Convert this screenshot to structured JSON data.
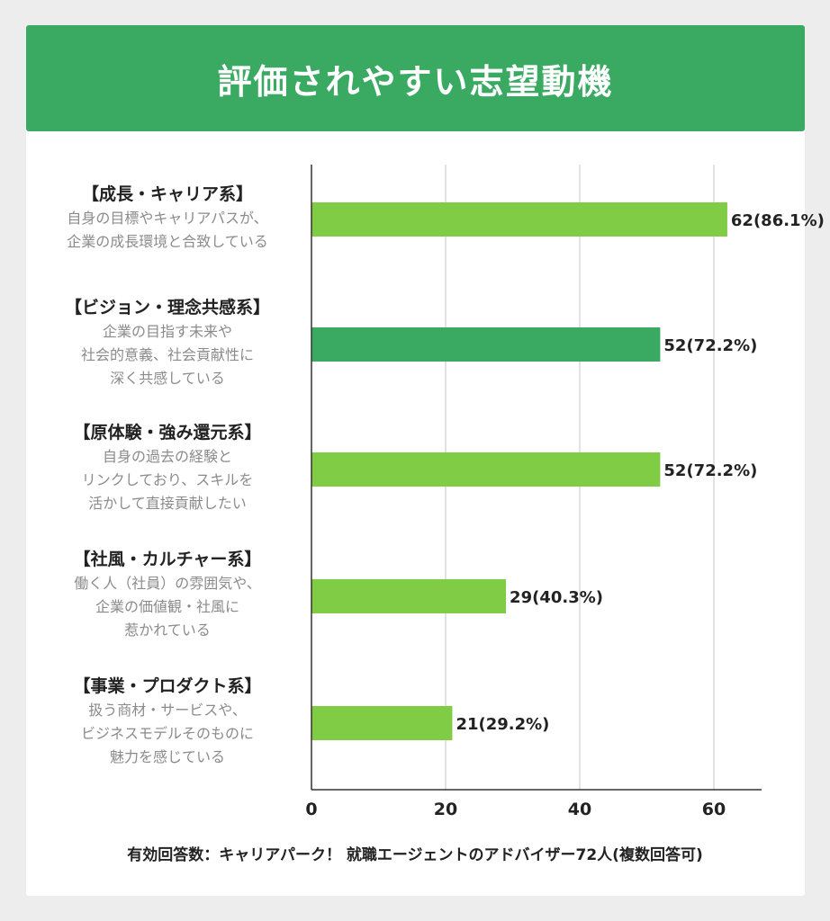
{
  "title": "評価されやすい志望動機",
  "footnote": "有効回答数：キャリアパーク！ 就職エージェントのアドバイザー72人(複数回答可)",
  "colors": {
    "header": "#3aaa63",
    "bar_light": "#80cc44",
    "bar_dark": "#3aaa63"
  },
  "chart_data": {
    "type": "bar",
    "orientation": "horizontal",
    "categories": [
      {
        "title": "【成長・キャリア系】",
        "desc": [
          "自身の目標やキャリアパスが、",
          "企業の成長環境と合致している"
        ],
        "value": 62,
        "label": "62(86.1%)",
        "color": "#80cc44"
      },
      {
        "title": "【ビジョン・理念共感系】",
        "desc": [
          "企業の目指す未来や",
          "社会的意義、社会貢献性に",
          "深く共感している"
        ],
        "value": 52,
        "label": "52(72.2%)",
        "color": "#3aaa63"
      },
      {
        "title": "【原体験・強み還元系】",
        "desc": [
          "自身の過去の経験と",
          "リンクしており、スキルを",
          "活かして直接貢献したい"
        ],
        "value": 52,
        "label": "52(72.2%)",
        "color": "#80cc44"
      },
      {
        "title": "【社風・カルチャー系】",
        "desc": [
          "働く人（社員）の雰囲気や、",
          "企業の価値観・社風に",
          "惹かれている"
        ],
        "value": 29,
        "label": "29(40.3%)",
        "color": "#80cc44"
      },
      {
        "title": "【事業・プロダクト系】",
        "desc": [
          "扱う商材・サービスや、",
          "ビジネスモデルそのものに",
          "魅力を感じている"
        ],
        "value": 21,
        "label": "21(29.2%)",
        "color": "#80cc44"
      }
    ],
    "xticks": [
      0,
      20,
      40,
      60
    ],
    "xlim": [
      0,
      67
    ],
    "grid": true
  }
}
